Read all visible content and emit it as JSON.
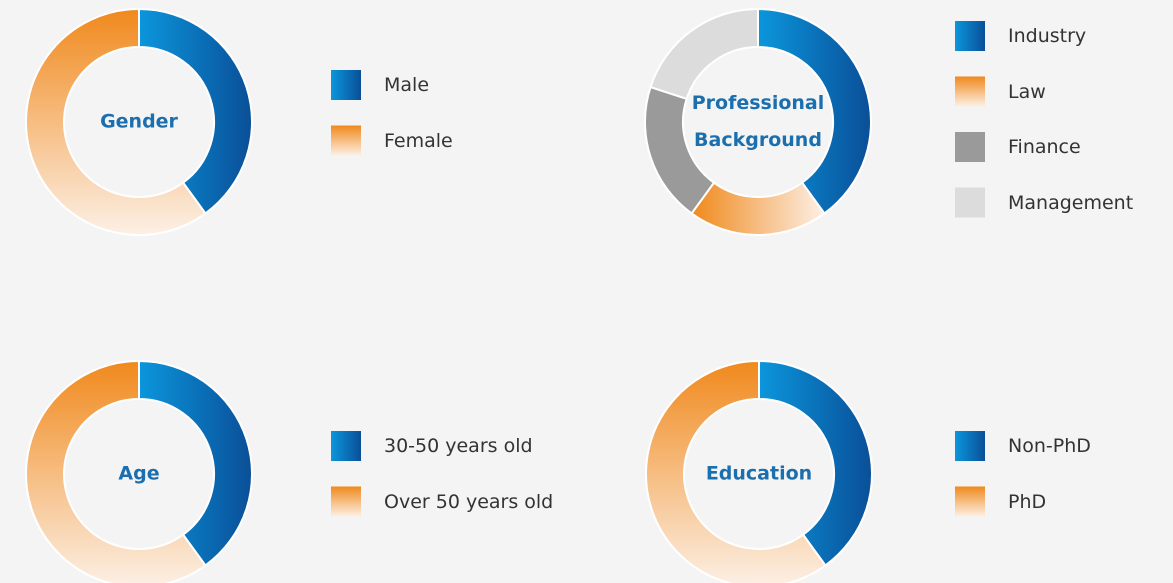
{
  "chart_data": [
    {
      "type": "donut",
      "title": "Gender",
      "categories": [
        "Male",
        "Female"
      ],
      "values": [
        40,
        60
      ],
      "colors": [
        "#0a6cbc",
        "#f0891c"
      ]
    },
    {
      "type": "donut",
      "title": "Professional Background",
      "categories": [
        "Industry",
        "Law",
        "Finance",
        "Management"
      ],
      "values": [
        40,
        20,
        20,
        20
      ],
      "colors": [
        "#0a6cbc",
        "#f0891c",
        "#9a9a9a",
        "#dcdcdc"
      ]
    },
    {
      "type": "donut",
      "title": "Age",
      "categories": [
        "30-50 years old",
        "Over 50 years old"
      ],
      "values": [
        40,
        60
      ],
      "colors": [
        "#0a6cbc",
        "#f0891c"
      ]
    },
    {
      "type": "donut",
      "title": "Education",
      "categories": [
        "Non-PhD",
        "PhD"
      ],
      "values": [
        40,
        60
      ],
      "colors": [
        "#0a6cbc",
        "#f0891c"
      ]
    }
  ]
}
